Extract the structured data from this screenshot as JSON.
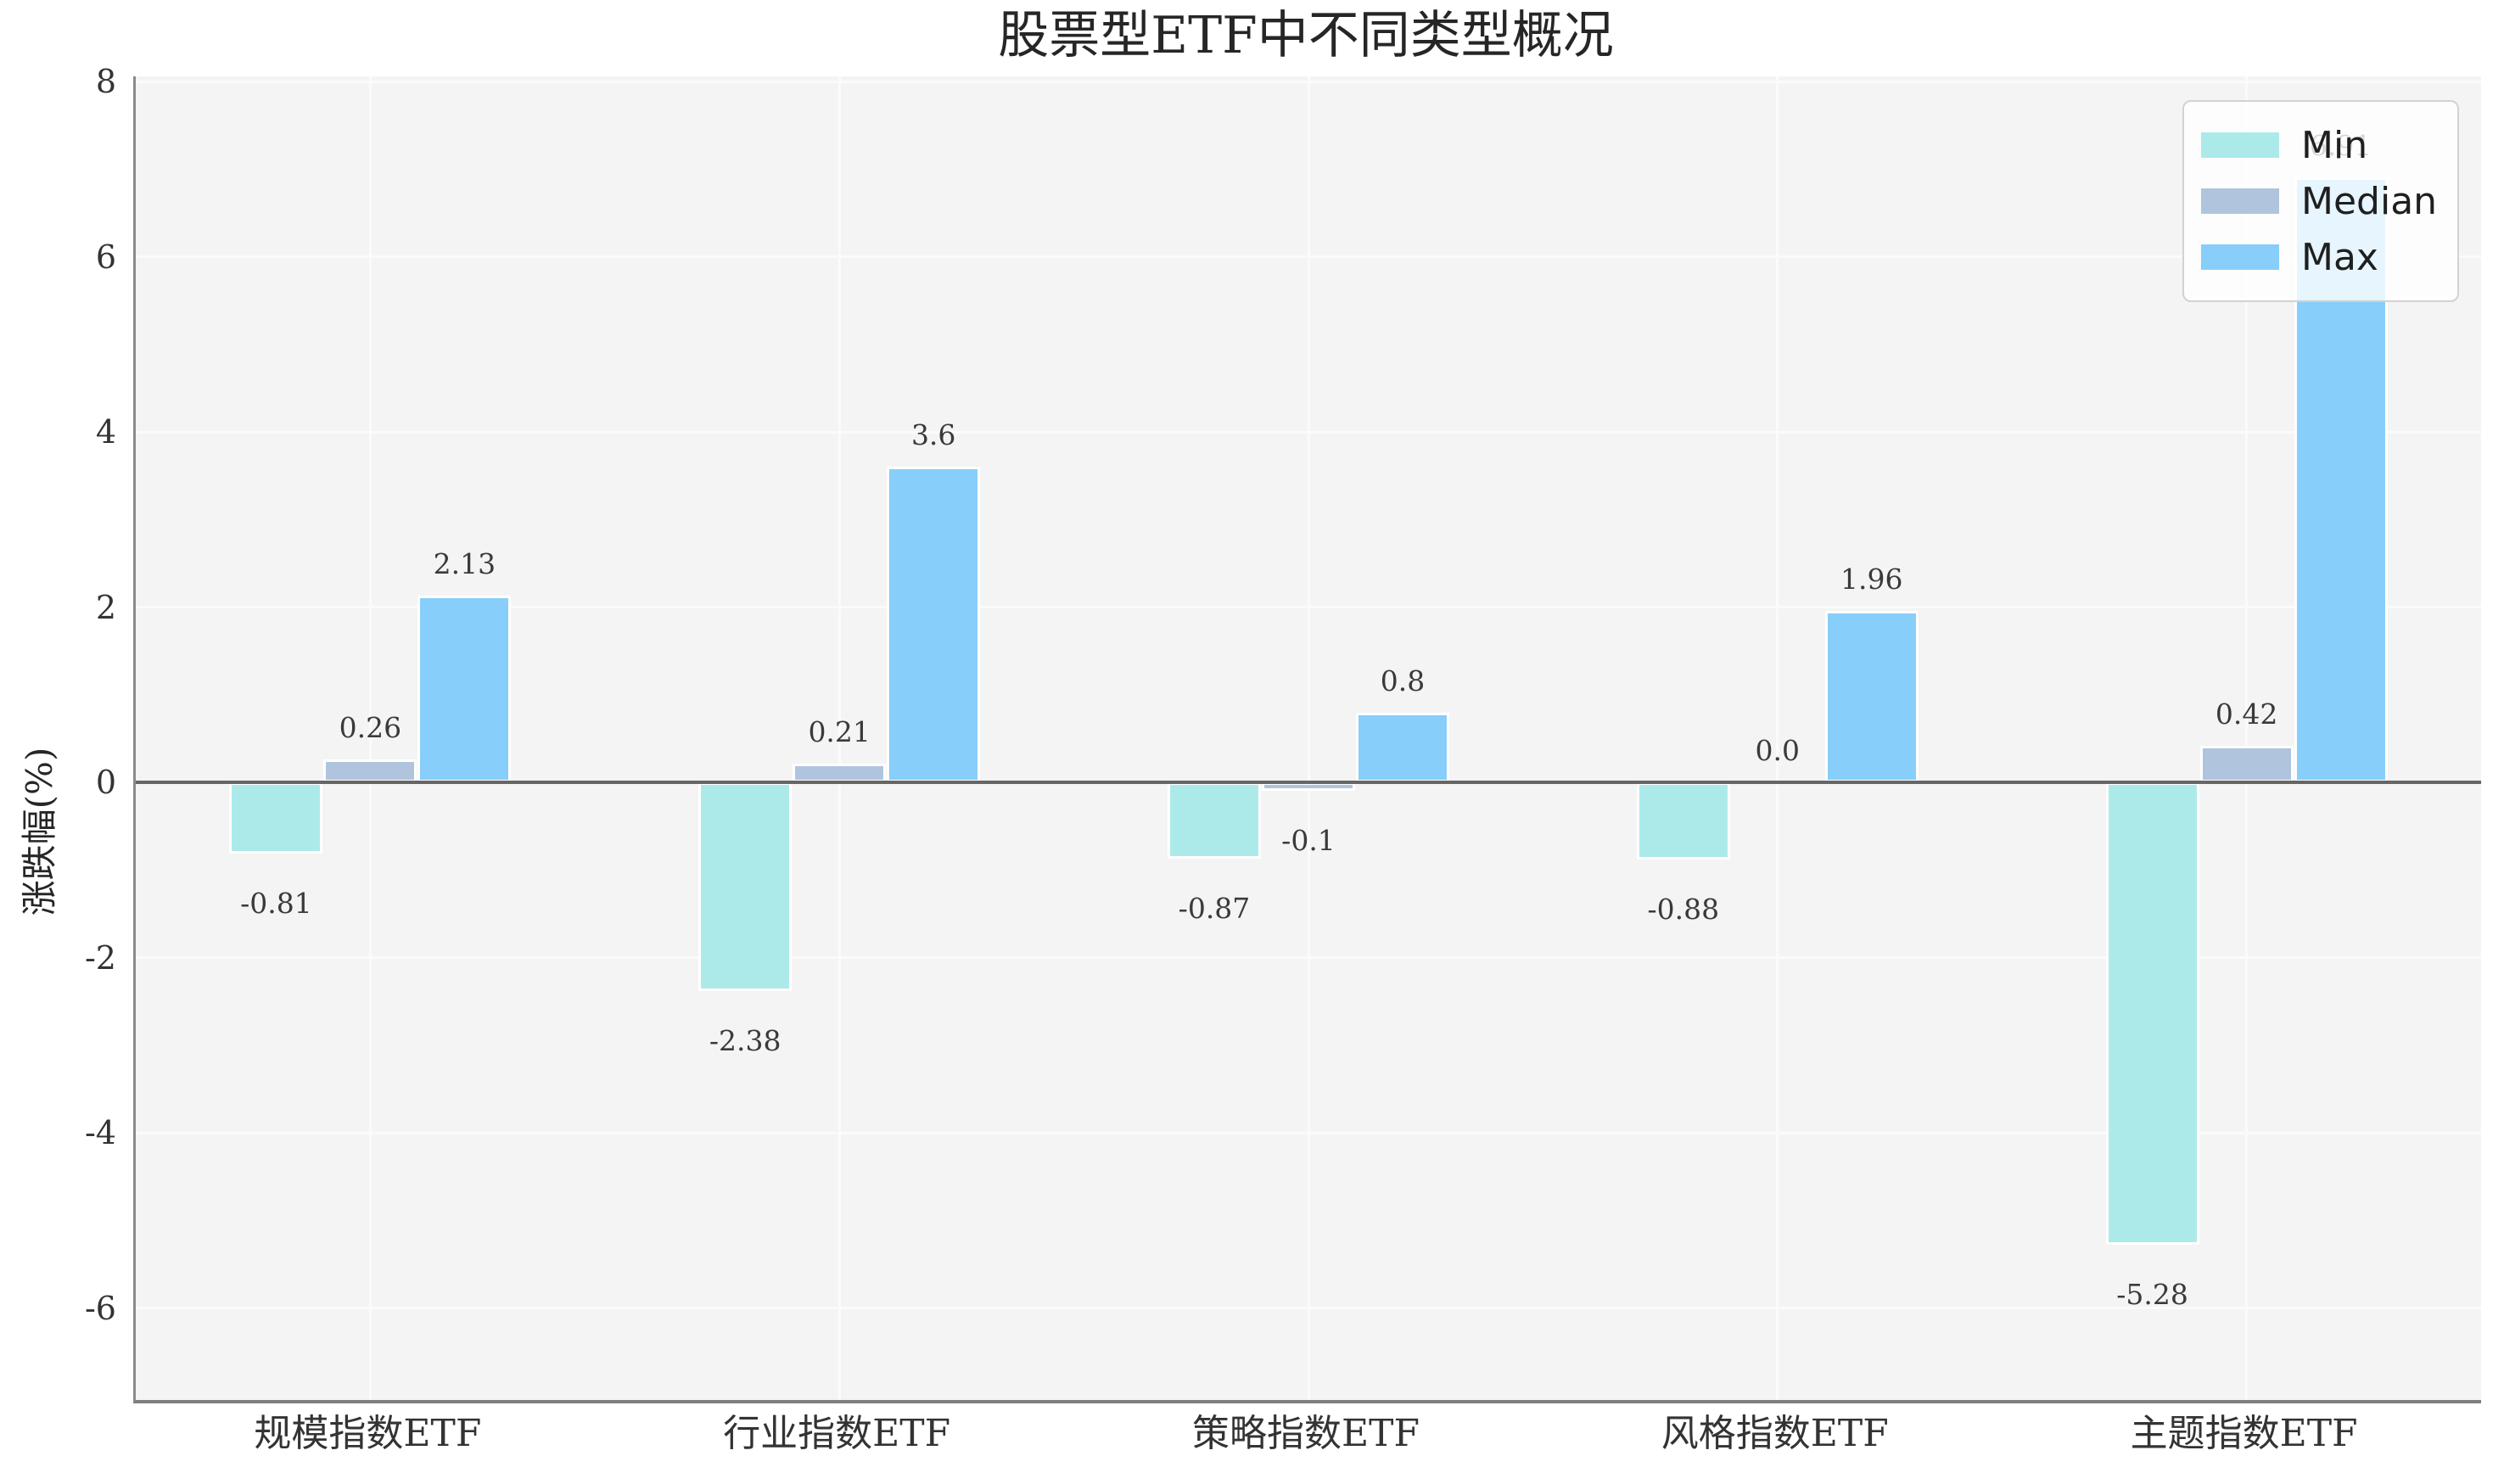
{
  "chart_data": {
    "type": "bar",
    "title": "股票型ETF中不同类型概况",
    "ylabel": "涨跌幅(%)",
    "xlabel": "",
    "categories": [
      "规模指数ETF",
      "行业指数ETF",
      "策略指数ETF",
      "风格指数ETF",
      "主题指数ETF"
    ],
    "series": [
      {
        "name": "Min",
        "color": "#aceaea",
        "values": [
          -0.81,
          -2.38,
          -0.87,
          -0.88,
          -5.28
        ],
        "labels": [
          "-0.81",
          "-2.38",
          "-0.87",
          "-0.88",
          "-5.28"
        ]
      },
      {
        "name": "Median",
        "color": "#b0c4de",
        "values": [
          0.26,
          0.21,
          -0.1,
          0.0,
          0.42
        ],
        "labels": [
          "0.26",
          "0.21",
          "-0.1",
          "0.0",
          "0.42"
        ]
      },
      {
        "name": "Max",
        "color": "#87cefa",
        "values": [
          2.13,
          3.6,
          0.8,
          1.96,
          6.91
        ],
        "labels": [
          "2.13",
          "3.6",
          "0.8",
          "1.96",
          "6.91"
        ]
      }
    ],
    "yticks": [
      8,
      6,
      4,
      2,
      0,
      -2,
      -4,
      -6
    ],
    "ylim": [
      -7.05,
      8.06
    ],
    "grid": true,
    "legend_position": "top-right"
  },
  "colors": {
    "plot_bg": "#f4f4f4",
    "grid": "#fbfbfb",
    "spine": "#8a8a8a",
    "zero_line": "#666666",
    "text": "#333333",
    "legend_border": "#d2d2d2",
    "legend_bg": "rgba(255,255,255,0.8)"
  }
}
